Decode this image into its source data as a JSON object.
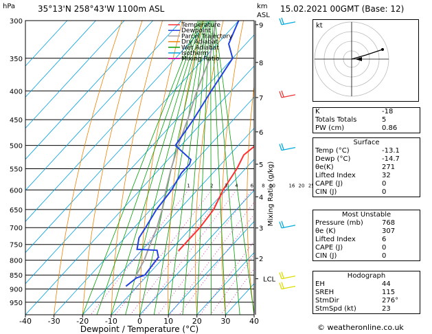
{
  "header": {
    "location": "35°13'N  258°43'W  1100m  ASL",
    "datetime": "15.02.2021  00GMT  (Base: 12)",
    "hpa_label": "hPa",
    "km_label": "km",
    "asl_label": "ASL"
  },
  "chart_data": {
    "type": "skew-t",
    "xlabel": "Dewpoint / Temperature (°C)",
    "mixing_axis_label": "Mixing Ratio (g/kg)",
    "xlim": [
      -40,
      40
    ],
    "ylim": [
      1000,
      300
    ],
    "x_ticks": [
      -40,
      -30,
      -20,
      -10,
      0,
      10,
      20,
      30,
      40
    ],
    "pressure_ticks": [
      300,
      350,
      400,
      450,
      500,
      550,
      600,
      650,
      700,
      750,
      800,
      850,
      900,
      950
    ],
    "km_ticks": [
      {
        "km": "9",
        "p": 305
      },
      {
        "km": "8",
        "p": 356
      },
      {
        "km": "7",
        "p": 411
      },
      {
        "km": "6",
        "p": 473
      },
      {
        "km": "5",
        "p": 540
      },
      {
        "km": "4",
        "p": 617
      },
      {
        "km": "3",
        "p": 701
      },
      {
        "km": "2",
        "p": 794
      },
      {
        "km": "LCL",
        "p": 863
      }
    ],
    "mixing_ratio_labels": [
      "1",
      "2",
      "3",
      "4",
      "6",
      "8",
      "10",
      "16",
      "20",
      "25"
    ],
    "legend": [
      {
        "name": "Temperature",
        "color": "#ff3030"
      },
      {
        "name": "Dewpoint",
        "color": "#2040e0"
      },
      {
        "name": "Parcel Trajectory",
        "color": "#a0a0a0"
      },
      {
        "name": "Dry Adiabat",
        "color": "#f08000"
      },
      {
        "name": "Wet Adiabat",
        "color": "#00a000"
      },
      {
        "name": "Isotherm",
        "color": "#00a0e0"
      },
      {
        "name": "Mixing Ratio",
        "color": "#e000b0"
      }
    ],
    "series": [
      {
        "name": "Temperature",
        "color": "#ff3030",
        "points": [
          [
            300,
            -40.5
          ],
          [
            350,
            -35
          ],
          [
            400,
            -27
          ],
          [
            450,
            -19
          ],
          [
            480,
            -15
          ],
          [
            500,
            -14
          ],
          [
            520,
            -15
          ],
          [
            550,
            -13
          ],
          [
            600,
            -11
          ],
          [
            650,
            -8
          ],
          [
            700,
            -7
          ],
          [
            750,
            -7
          ],
          [
            770,
            -7
          ]
        ]
      },
      {
        "name": "Dewpoint",
        "color": "#2040e0",
        "points": [
          [
            300,
            -60
          ],
          [
            330,
            -56
          ],
          [
            350,
            -50
          ],
          [
            400,
            -47
          ],
          [
            450,
            -44
          ],
          [
            500,
            -42
          ],
          [
            530,
            -32
          ],
          [
            540,
            -31
          ],
          [
            560,
            -31
          ],
          [
            580,
            -30
          ],
          [
            600,
            -29
          ],
          [
            650,
            -28
          ],
          [
            700,
            -26
          ],
          [
            730,
            -25
          ],
          [
            765,
            -22
          ],
          [
            768,
            -14.7
          ],
          [
            790,
            -12
          ],
          [
            850,
            -11
          ],
          [
            860,
            -13
          ],
          [
            890,
            -14
          ]
        ]
      }
    ],
    "parcel": [
      [
        300,
        -68
      ],
      [
        350,
        -58
      ],
      [
        400,
        -52
      ],
      [
        450,
        -46
      ],
      [
        500,
        -41
      ],
      [
        550,
        -36
      ],
      [
        600,
        -31
      ],
      [
        650,
        -26
      ],
      [
        700,
        -22
      ],
      [
        750,
        -19
      ],
      [
        800,
        -16
      ],
      [
        850,
        -14
      ],
      [
        863,
        -13.1
      ]
    ]
  },
  "indices": {
    "rows": [
      {
        "label": "K",
        "value": "-18"
      },
      {
        "label": "Totals Totals",
        "value": "5"
      },
      {
        "label": "PW (cm)",
        "value": "0.86"
      }
    ],
    "surface": {
      "title": "Surface",
      "rows": [
        {
          "label": "Temp (°C)",
          "value": "-13.1"
        },
        {
          "label": "Dewp (°C)",
          "value": "-14.7"
        },
        {
          "label": "θe(K)",
          "value": "271"
        },
        {
          "label": "Lifted Index",
          "value": "32"
        },
        {
          "label": "CAPE (J)",
          "value": "0"
        },
        {
          "label": "CIN (J)",
          "value": "0"
        }
      ]
    },
    "most_unstable": {
      "title": "Most Unstable",
      "rows": [
        {
          "label": "Pressure (mb)",
          "value": "768"
        },
        {
          "label": "θe (K)",
          "value": "307"
        },
        {
          "label": "Lifted Index",
          "value": "6"
        },
        {
          "label": "CAPE (J)",
          "value": "0"
        },
        {
          "label": "CIN (J)",
          "value": "0"
        }
      ]
    },
    "hodograph": {
      "title": "Hodograph",
      "rows": [
        {
          "label": "EH",
          "value": "44"
        },
        {
          "label": "SREH",
          "value": "115"
        },
        {
          "label": "StmDir",
          "value": "276°"
        },
        {
          "label": "StmSpd (kt)",
          "value": "23"
        }
      ]
    }
  },
  "hodo_label": "kt",
  "copyright": "© weatheronline.co.uk"
}
